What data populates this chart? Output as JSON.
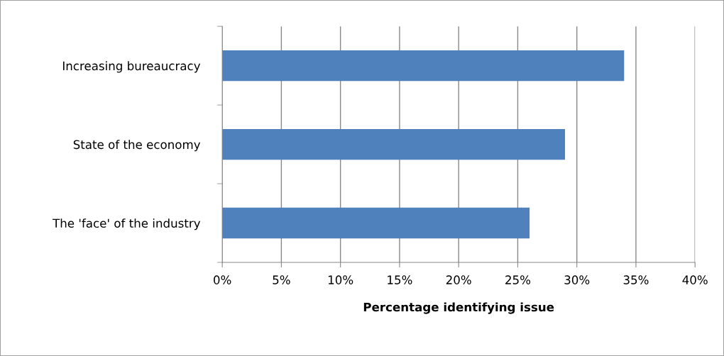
{
  "chart_data": {
    "type": "bar",
    "orientation": "horizontal",
    "xlabel": "Percentage identifying issue",
    "categories": [
      "Increasing bureaucracy",
      "State of the economy",
      "The 'face' of the industry"
    ],
    "values": [
      34,
      29,
      26
    ],
    "color": "#4f81bd",
    "xlim": [
      0,
      40
    ],
    "xticks": [
      {
        "value": 0,
        "label": "0%"
      },
      {
        "value": 5,
        "label": "5%"
      },
      {
        "value": 10,
        "label": "10%"
      },
      {
        "value": 15,
        "label": "15%"
      },
      {
        "value": 20,
        "label": "20%"
      },
      {
        "value": 25,
        "label": "25%"
      },
      {
        "value": 30,
        "label": "30%"
      },
      {
        "value": 35,
        "label": "35%"
      },
      {
        "value": 40,
        "label": "40%"
      }
    ],
    "grid": "x",
    "legend": false
  }
}
